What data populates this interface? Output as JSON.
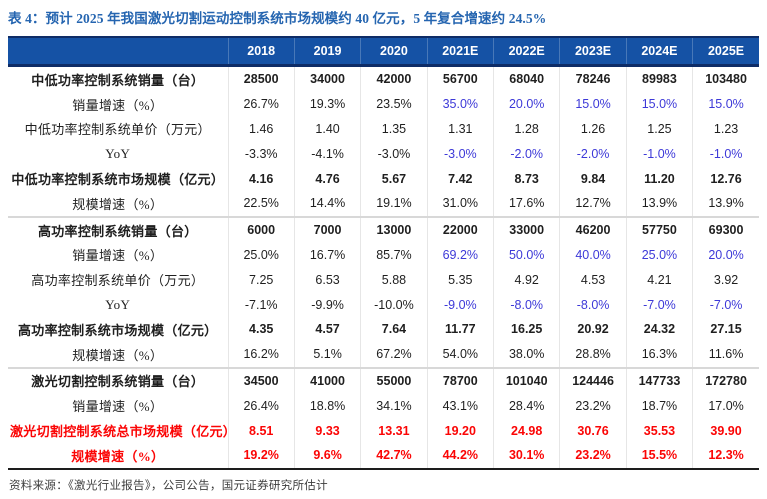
{
  "title": "表 4：预计 2025 年我国激光切割运动控制系统市场规模约 40 亿元，5 年复合增速约 24.5%",
  "source_note": "资料来源：《激光行业报告》，公司公告，国元证券研究所估计",
  "colors": {
    "header_bg": "#1552A5",
    "header_text": "#FFFFFF",
    "title_blue": "#2565B0",
    "forecast_blue": "#3D39D8",
    "highlight_red": "#FB0505",
    "border_navy": "#0E2C66",
    "border_bottom_dark": "#1D1D1D",
    "section_divider": "#D8D8D8",
    "body_text": "#1F1F1F"
  },
  "chart_data": {
    "type": "table",
    "title": "预计 2025 年我国激光切割运动控制系统市场规模约 40 亿元，5 年复合增速约 24.5%",
    "columns": [
      "2018",
      "2019",
      "2020",
      "2021E",
      "2022E",
      "2023E",
      "2024E",
      "2025E"
    ],
    "forecast_start_index": 3,
    "rows": [
      {
        "label": "中低功率控制系统销量（台）",
        "values": [
          "28500",
          "34000",
          "42000",
          "56700",
          "68040",
          "78246",
          "89983",
          "103480"
        ],
        "bold": true,
        "red": false,
        "blueForecast": false,
        "sectionStart": false
      },
      {
        "label": "销量增速（%）",
        "values": [
          "26.7%",
          "19.3%",
          "23.5%",
          "35.0%",
          "20.0%",
          "15.0%",
          "15.0%",
          "15.0%"
        ],
        "bold": false,
        "red": false,
        "blueForecast": true,
        "sectionStart": false
      },
      {
        "label": "中低功率控制系统单价（万元）",
        "values": [
          "1.46",
          "1.40",
          "1.35",
          "1.31",
          "1.28",
          "1.26",
          "1.25",
          "1.23"
        ],
        "bold": false,
        "red": false,
        "blueForecast": false,
        "sectionStart": false
      },
      {
        "label": "YoY",
        "values": [
          "-3.3%",
          "-4.1%",
          "-3.0%",
          "-3.0%",
          "-2.0%",
          "-2.0%",
          "-1.0%",
          "-1.0%"
        ],
        "bold": false,
        "red": false,
        "blueForecast": true,
        "sectionStart": false
      },
      {
        "label": "中低功率控制系统市场规模（亿元）",
        "values": [
          "4.16",
          "4.76",
          "5.67",
          "7.42",
          "8.73",
          "9.84",
          "11.20",
          "12.76"
        ],
        "bold": true,
        "red": false,
        "blueForecast": false,
        "sectionStart": false
      },
      {
        "label": "规模增速（%）",
        "values": [
          "22.5%",
          "14.4%",
          "19.1%",
          "31.0%",
          "17.6%",
          "12.7%",
          "13.9%",
          "13.9%"
        ],
        "bold": false,
        "red": false,
        "blueForecast": false,
        "sectionStart": false
      },
      {
        "label": "高功率控制系统销量（台）",
        "values": [
          "6000",
          "7000",
          "13000",
          "22000",
          "33000",
          "46200",
          "57750",
          "69300"
        ],
        "bold": true,
        "red": false,
        "blueForecast": false,
        "sectionStart": true
      },
      {
        "label": "销量增速（%）",
        "values": [
          "25.0%",
          "16.7%",
          "85.7%",
          "69.2%",
          "50.0%",
          "40.0%",
          "25.0%",
          "20.0%"
        ],
        "bold": false,
        "red": false,
        "blueForecast": true,
        "sectionStart": false
      },
      {
        "label": "高功率控制系统单价（万元）",
        "values": [
          "7.25",
          "6.53",
          "5.88",
          "5.35",
          "4.92",
          "4.53",
          "4.21",
          "3.92"
        ],
        "bold": false,
        "red": false,
        "blueForecast": false,
        "sectionStart": false
      },
      {
        "label": "YoY",
        "values": [
          "-7.1%",
          "-9.9%",
          "-10.0%",
          "-9.0%",
          "-8.0%",
          "-8.0%",
          "-7.0%",
          "-7.0%"
        ],
        "bold": false,
        "red": false,
        "blueForecast": true,
        "sectionStart": false
      },
      {
        "label": "高功率控制系统市场规模（亿元）",
        "values": [
          "4.35",
          "4.57",
          "7.64",
          "11.77",
          "16.25",
          "20.92",
          "24.32",
          "27.15"
        ],
        "bold": true,
        "red": false,
        "blueForecast": false,
        "sectionStart": false
      },
      {
        "label": "规模增速（%）",
        "values": [
          "16.2%",
          "5.1%",
          "67.2%",
          "54.0%",
          "38.0%",
          "28.8%",
          "16.3%",
          "11.6%"
        ],
        "bold": false,
        "red": false,
        "blueForecast": false,
        "sectionStart": false
      },
      {
        "label": "激光切割控制系统销量（台）",
        "values": [
          "34500",
          "41000",
          "55000",
          "78700",
          "101040",
          "124446",
          "147733",
          "172780"
        ],
        "bold": true,
        "red": false,
        "blueForecast": false,
        "sectionStart": true
      },
      {
        "label": "销量增速（%）",
        "values": [
          "26.4%",
          "18.8%",
          "34.1%",
          "43.1%",
          "28.4%",
          "23.2%",
          "18.7%",
          "17.0%"
        ],
        "bold": false,
        "red": false,
        "blueForecast": false,
        "sectionStart": false
      },
      {
        "label": "激光切割控制系统总市场规模（亿元）",
        "values": [
          "8.51",
          "9.33",
          "13.31",
          "19.20",
          "24.98",
          "30.76",
          "35.53",
          "39.90"
        ],
        "bold": true,
        "red": true,
        "blueForecast": false,
        "sectionStart": false
      },
      {
        "label": "规模增速（%）",
        "values": [
          "19.2%",
          "9.6%",
          "42.7%",
          "44.2%",
          "30.1%",
          "23.2%",
          "15.5%",
          "12.3%"
        ],
        "bold": true,
        "red": true,
        "blueForecast": false,
        "sectionStart": false
      }
    ]
  }
}
